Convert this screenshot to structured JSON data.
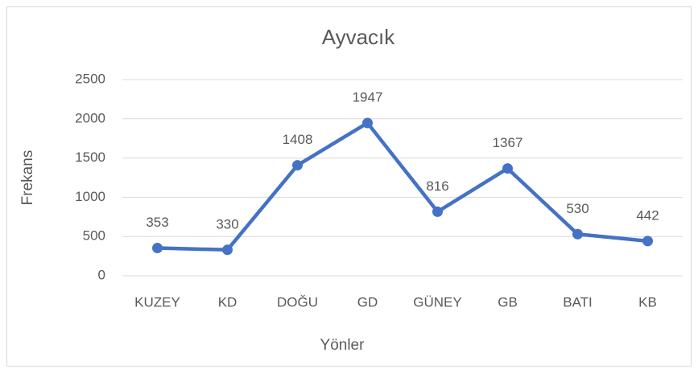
{
  "chart_data": {
    "type": "line",
    "title": "Ayvacık",
    "x_label": "Yönler",
    "y_label": "Frekans",
    "categories": [
      "KUZEY",
      "KD",
      "DOĞU",
      "GD",
      "GÜNEY",
      "GB",
      "BATI",
      "KB"
    ],
    "values": [
      353,
      330,
      1408,
      1947,
      816,
      1367,
      530,
      442
    ],
    "color": "#4472c4",
    "ylim": [
      0,
      2500
    ],
    "yticks": [
      0,
      500,
      1000,
      1500,
      2000,
      2500
    ],
    "grid": true
  }
}
